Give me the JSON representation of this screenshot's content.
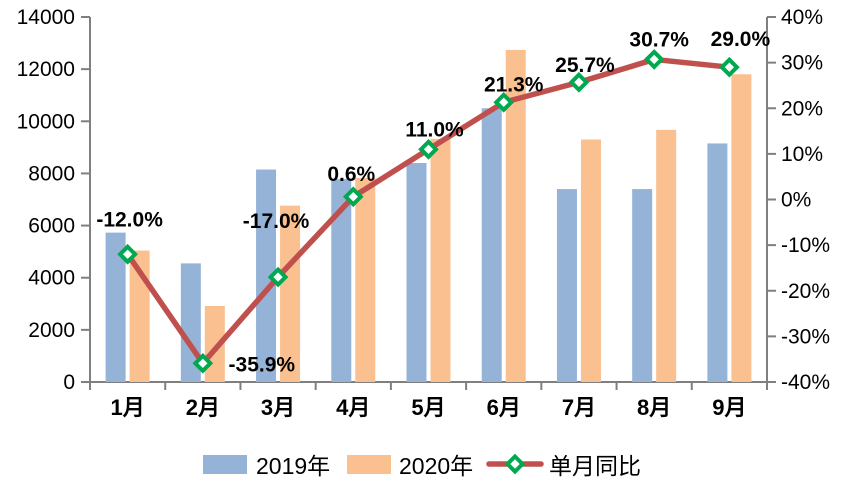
{
  "chart_data": {
    "type": "bar",
    "subtype": "grouped-bars-with-line-overlay",
    "title": "",
    "categories": [
      "1月",
      "2月",
      "3月",
      "4月",
      "5月",
      "6月",
      "7月",
      "8月",
      "9月"
    ],
    "series": [
      {
        "name": "2019年",
        "type": "bar",
        "color": "#95B3D7",
        "values": [
          5730,
          4550,
          8150,
          7780,
          8400,
          10500,
          7400,
          7400,
          9150
        ]
      },
      {
        "name": "2020年",
        "type": "bar",
        "color": "#FAC08F",
        "values": [
          5042,
          2917,
          6765,
          7827,
          9324,
          12737,
          9302,
          9672,
          11804
        ]
      },
      {
        "name": "单月同比",
        "type": "line",
        "color": "#C0504D",
        "marker": "diamond",
        "marker_color": "#00A850",
        "marker_fill": "#FFFFFF",
        "axis": "right",
        "values_pct": [
          -12.0,
          -35.9,
          -17.0,
          0.6,
          11.0,
          21.3,
          25.7,
          30.7,
          29.0
        ],
        "point_labels": [
          "-12.0%",
          "-35.9%",
          "-17.0%",
          "0.6%",
          "11.0%",
          "21.3%",
          "25.7%",
          "30.7%",
          "29.0%"
        ]
      }
    ],
    "left_axis": {
      "min": 0,
      "max": 14000,
      "step": 2000,
      "ticks": [
        {
          "v": 0,
          "t": "0"
        },
        {
          "v": 2000,
          "t": "2000"
        },
        {
          "v": 4000,
          "t": "4000"
        },
        {
          "v": 6000,
          "t": "6000"
        },
        {
          "v": 8000,
          "t": "8000"
        },
        {
          "v": 10000,
          "t": "10000"
        },
        {
          "v": 12000,
          "t": "12000"
        },
        {
          "v": 14000,
          "t": "14000"
        }
      ]
    },
    "right_axis": {
      "min": -40,
      "max": 40,
      "step": 10,
      "ticks": [
        {
          "v": -40,
          "t": "-40%"
        },
        {
          "v": -30,
          "t": "-30%"
        },
        {
          "v": -20,
          "t": "-20%"
        },
        {
          "v": -10,
          "t": "-10%"
        },
        {
          "v": 0,
          "t": "0%"
        },
        {
          "v": 10,
          "t": "10%"
        },
        {
          "v": 20,
          "t": "20%"
        },
        {
          "v": 30,
          "t": "30%"
        },
        {
          "v": 40,
          "t": "40%"
        }
      ]
    },
    "grid": false,
    "legend_position": "bottom",
    "legend": [
      {
        "label": "2019年",
        "swatch": "bar",
        "color": "#95B3D7"
      },
      {
        "label": "2020年",
        "swatch": "bar",
        "color": "#FAC08F"
      },
      {
        "label": "单月同比",
        "swatch": "line-diamond",
        "color": "#C0504D",
        "marker_color": "#00A850"
      }
    ],
    "colors": {
      "axis_line": "#7F7F7F",
      "text": "#000000",
      "background": "#FFFFFF"
    }
  }
}
